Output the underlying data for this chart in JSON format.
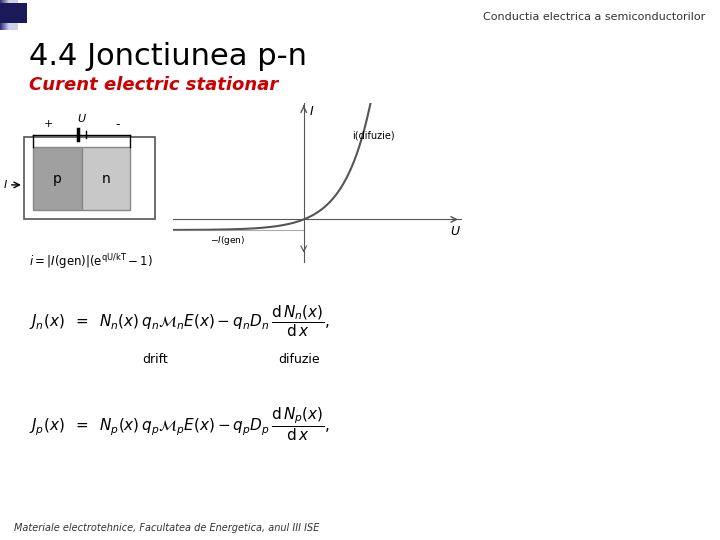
{
  "title": "4.4 Jonctiunea p-n",
  "subtitle": "Curent electric stationar",
  "header_text": "Conductia electrica a semiconductorilor",
  "footer_text": "Materiale electrotehnice, Facultatea de Energetica, anul III ISE",
  "bg_color": "#ffffff",
  "title_color": "#000000",
  "subtitle_color": "#cc0000",
  "drift_label": "drift",
  "difuzie_label": "difuzie",
  "i_difuzie_label": "i(difuzie)",
  "grad_left": "#2a2a7a",
  "grad_right": "#d0d4e8",
  "header_square_color": "#1a1a5a",
  "curve_color": "#555555",
  "spine_color": "#555555",
  "footer_color": "#333333",
  "header_text_color": "#333333"
}
